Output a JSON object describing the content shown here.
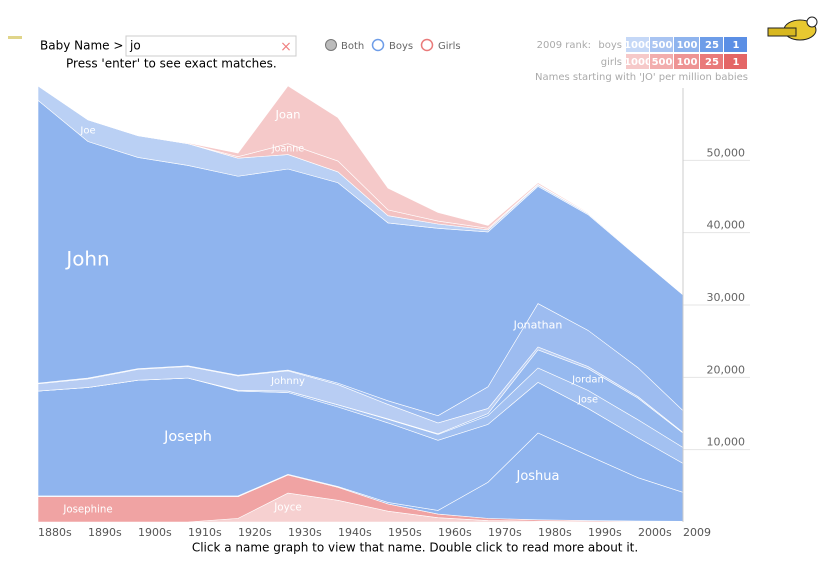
{
  "search": {
    "label": "Baby Name >",
    "value": "jo",
    "hint": "Press 'enter' to see exact matches."
  },
  "filters": [
    "Both",
    "Boys",
    "Girls"
  ],
  "rank_legend": {
    "title": "2009 rank:",
    "boys": "boys",
    "girls": "girls",
    "levels": [
      "1000",
      "500",
      "100",
      "25",
      "1"
    ]
  },
  "caption": "Names starting with 'JO' per million babies",
  "footer": "Click a name graph to view that name. Double click to read more about it.",
  "chart_data": {
    "type": "stacked_area",
    "x": [
      1880,
      1890,
      1900,
      1910,
      1920,
      1930,
      1940,
      1950,
      1960,
      1970,
      1980,
      1990,
      2000,
      2009
    ],
    "xlim": [
      1880,
      2009
    ],
    "xticks": [
      {
        "value": 1880,
        "label": "1880s"
      },
      {
        "value": 1890,
        "label": "1890s"
      },
      {
        "value": 1900,
        "label": "1900s"
      },
      {
        "value": 1910,
        "label": "1910s"
      },
      {
        "value": 1920,
        "label": "1920s"
      },
      {
        "value": 1930,
        "label": "1930s"
      },
      {
        "value": 1940,
        "label": "1940s"
      },
      {
        "value": 1950,
        "label": "1950s"
      },
      {
        "value": 1960,
        "label": "1960s"
      },
      {
        "value": 1970,
        "label": "1970s"
      },
      {
        "value": 1980,
        "label": "1980s"
      },
      {
        "value": 1990,
        "label": "1990s"
      },
      {
        "value": 2000,
        "label": "2000s"
      },
      2009
    ],
    "ylim": [
      0,
      60000
    ],
    "yticks": [
      {
        "value": 10000,
        "label": "10,000"
      },
      {
        "value": 20000,
        "label": "20,000"
      },
      {
        "value": 30000,
        "label": "30,000"
      },
      {
        "value": 40000,
        "label": "40,000"
      },
      {
        "value": 50000,
        "label": "50,000"
      }
    ],
    "grid": true,
    "series": [
      {
        "name": "Joyce",
        "color": "#f6d0d0",
        "values": [
          0,
          0,
          0,
          0,
          500,
          4000,
          3000,
          1500,
          600,
          200,
          100,
          50,
          30,
          20
        ]
      },
      {
        "name": "Josephine",
        "color": "#f0a3a3",
        "values": [
          3500,
          3500,
          3500,
          3500,
          3000,
          2500,
          1800,
          1000,
          500,
          300,
          200,
          150,
          100,
          80
        ]
      },
      {
        "name": "Joshua",
        "color": "#8fb4ee",
        "values": [
          100,
          100,
          100,
          100,
          100,
          100,
          100,
          200,
          500,
          5000,
          12000,
          9000,
          6000,
          4000
        ]
      },
      {
        "name": "Joseph",
        "color": "#8fb4ee",
        "values": [
          14500,
          15000,
          16000,
          16300,
          14500,
          11300,
          11000,
          11000,
          9700,
          8000,
          7000,
          6500,
          5500,
          4000
        ]
      },
      {
        "name": "Jose",
        "color": "#a3c1f1",
        "values": [
          0,
          0,
          0,
          0,
          100,
          200,
          300,
          500,
          800,
          1200,
          2000,
          2500,
          2500,
          2200
        ]
      },
      {
        "name": "Jordan",
        "color": "#96b9ef",
        "values": [
          0,
          0,
          0,
          0,
          0,
          0,
          0,
          50,
          100,
          300,
          2500,
          3000,
          3000,
          2000
        ]
      },
      {
        "name": "Johnny",
        "color": "#b8cdf3",
        "values": [
          1000,
          1200,
          1500,
          1600,
          2000,
          2800,
          2800,
          2000,
          1500,
          700,
          400,
          300,
          200,
          100
        ]
      },
      {
        "name": "Jonathan",
        "color": "#9dbcf0",
        "values": [
          100,
          100,
          100,
          100,
          100,
          100,
          200,
          500,
          1000,
          3000,
          6000,
          5000,
          4000,
          3000
        ]
      },
      {
        "name": "John",
        "color": "#8fb4ee",
        "values": [
          39100,
          32700,
          29200,
          27700,
          27500,
          27800,
          27700,
          24600,
          25900,
          21400,
          16200,
          16000,
          15300,
          16000
        ]
      },
      {
        "name": "Joe",
        "color": "#bad0f4",
        "values": [
          2000,
          3000,
          3000,
          3000,
          2500,
          2000,
          1500,
          1000,
          600,
          300,
          200,
          150,
          100,
          80
        ]
      },
      {
        "name": "Joanne",
        "color": "#f3c2c2",
        "values": [
          0,
          0,
          0,
          0,
          200,
          1500,
          1500,
          800,
          400,
          200,
          100,
          50,
          30,
          20
        ]
      },
      {
        "name": "Joan",
        "color": "#f5c9c9",
        "values": [
          0,
          0,
          0,
          100,
          500,
          8000,
          6000,
          3000,
          1200,
          400,
          200,
          100,
          50,
          30
        ]
      }
    ]
  }
}
